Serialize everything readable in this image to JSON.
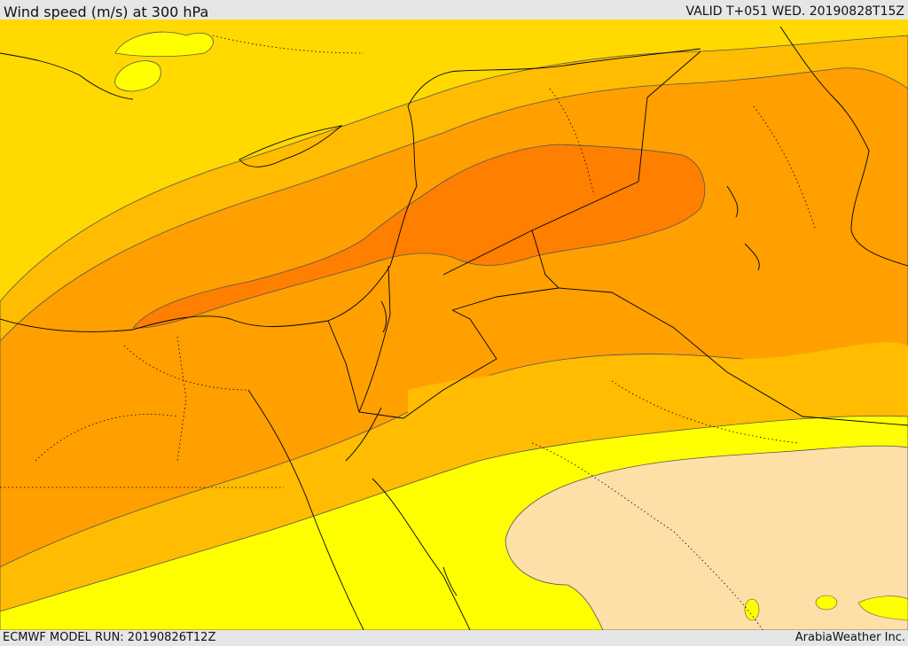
{
  "header": {
    "title": "Wind speed (m/s) at 300 hPa",
    "valid": "VALID T+051 WED. 20190828T15Z"
  },
  "footer": {
    "model_run": "ECMWF MODEL RUN: 20190826T12Z",
    "credit": "ArabiaWeather Inc."
  },
  "palette": {
    "lightest": "#fedfa8",
    "yellow": "#ffff00",
    "gold": "#ffd900",
    "amber": "#ffbc00",
    "orange": "#ffa000",
    "dark_orange": "#ff7f00",
    "contour": "#555555",
    "border": "#000000"
  }
}
